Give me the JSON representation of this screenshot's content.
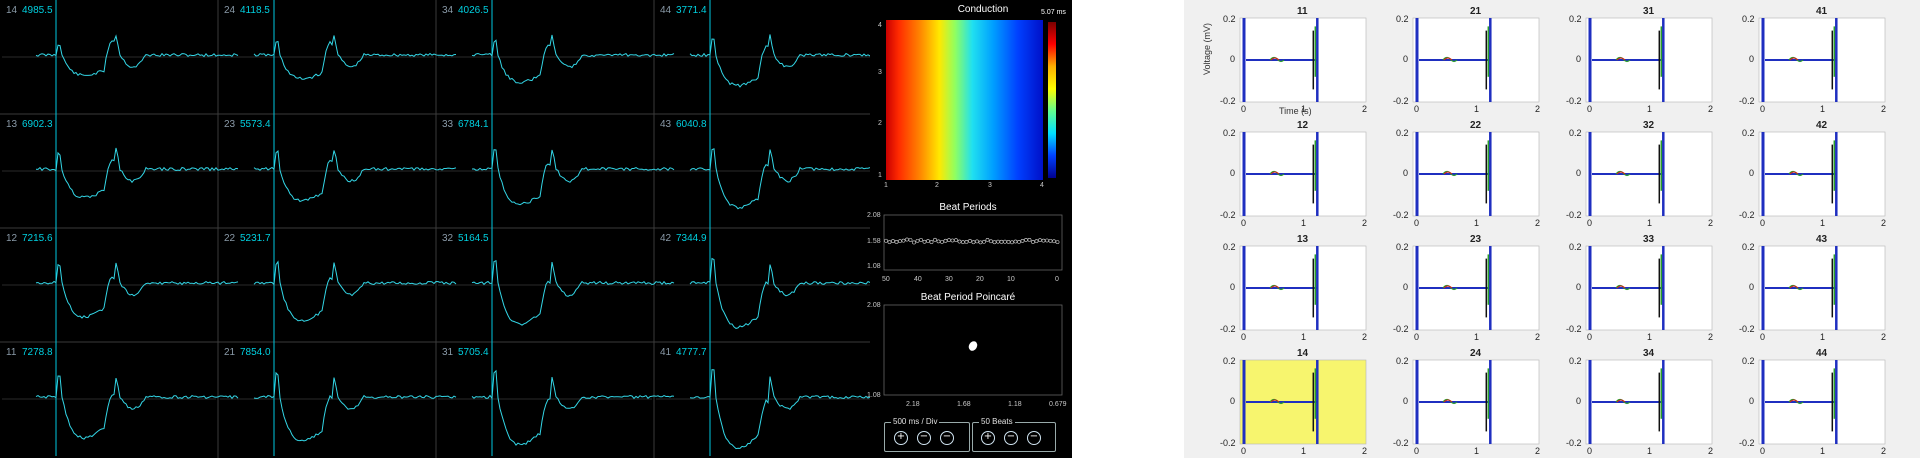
{
  "mea_viewer": {
    "cells": [
      {
        "id": "14",
        "value": "4985.5"
      },
      {
        "id": "24",
        "value": "4118.5"
      },
      {
        "id": "34",
        "value": "4026.5"
      },
      {
        "id": "44",
        "value": "3771.4"
      },
      {
        "id": "13",
        "value": "6902.3"
      },
      {
        "id": "23",
        "value": "5573.4"
      },
      {
        "id": "33",
        "value": "6784.1"
      },
      {
        "id": "43",
        "value": "6040.8"
      },
      {
        "id": "12",
        "value": "7215.6"
      },
      {
        "id": "22",
        "value": "5231.7"
      },
      {
        "id": "32",
        "value": "5164.5"
      },
      {
        "id": "42",
        "value": "7344.9"
      },
      {
        "id": "11",
        "value": "7278.8"
      },
      {
        "id": "21",
        "value": "7854.0"
      },
      {
        "id": "31",
        "value": "5705.4"
      },
      {
        "id": "41",
        "value": "4777.7"
      }
    ],
    "conduction": {
      "title": "Conduction",
      "scale_max": "5.07 ms",
      "x_ticks": [
        "1",
        "2",
        "3",
        "4"
      ],
      "y_ticks": [
        "4",
        "3",
        "2",
        "1"
      ]
    },
    "beat_periods": {
      "title": "Beat Periods",
      "y_ticks": [
        "2.08",
        "1.58",
        "1.08"
      ],
      "x_ticks": [
        "50",
        "40",
        "30",
        "20",
        "10",
        "0"
      ]
    },
    "poincare": {
      "title": "Beat Period Poincaré",
      "y_ticks": [
        "2.08",
        "1.08"
      ],
      "x_ticks": [
        "2.18",
        "1.68",
        "1.18",
        "0.679"
      ]
    },
    "controls": {
      "time_label": "500 ms / Div",
      "beats_label": "50 Beats"
    }
  },
  "matlab_grid": {
    "ylabel": "Voltage (mV)",
    "xlabel": "Time (s)",
    "y_ticks": [
      "0.2",
      "0",
      "-0.2"
    ],
    "x_ticks": [
      "0",
      "1",
      "2"
    ],
    "highlight_color": "#f7f56e",
    "panels": [
      {
        "title": "11"
      },
      {
        "title": "21"
      },
      {
        "title": "31"
      },
      {
        "title": "41"
      },
      {
        "title": "12"
      },
      {
        "title": "22"
      },
      {
        "title": "32"
      },
      {
        "title": "42"
      },
      {
        "title": "13"
      },
      {
        "title": "23"
      },
      {
        "title": "33"
      },
      {
        "title": "43"
      },
      {
        "title": "14",
        "highlighted": true
      },
      {
        "title": "24"
      },
      {
        "title": "34"
      },
      {
        "title": "44"
      }
    ]
  }
}
